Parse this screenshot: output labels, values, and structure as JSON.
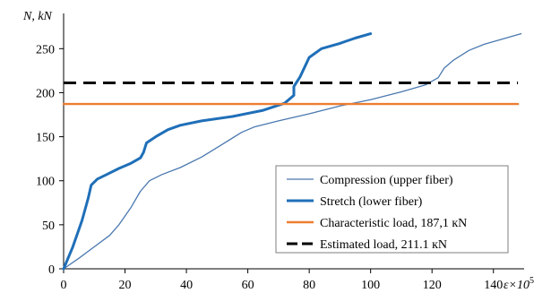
{
  "chart_data": {
    "type": "line",
    "xlabel": "ε×10",
    "xlabel_exponent": "5",
    "ylabel": "N, kN",
    "xlim": [
      0,
      150
    ],
    "ylim": [
      0,
      290
    ],
    "x_ticks": [
      0,
      20,
      40,
      60,
      80,
      100,
      120,
      140
    ],
    "y_ticks": [
      0,
      50,
      100,
      150,
      200,
      250
    ],
    "grid": false,
    "legend_position": "bottom-right",
    "series": [
      {
        "name": "Compression (upper fiber)",
        "color": "#4a78b0",
        "style": "solid",
        "weight": "thin",
        "points": [
          [
            0,
            0
          ],
          [
            5,
            12
          ],
          [
            10,
            25
          ],
          [
            15,
            38
          ],
          [
            18,
            50
          ],
          [
            22,
            70
          ],
          [
            25,
            88
          ],
          [
            28,
            100
          ],
          [
            32,
            107
          ],
          [
            38,
            115
          ],
          [
            45,
            127
          ],
          [
            52,
            142
          ],
          [
            58,
            155
          ],
          [
            62,
            161
          ],
          [
            70,
            168
          ],
          [
            80,
            176
          ],
          [
            90,
            185
          ],
          [
            100,
            192
          ],
          [
            110,
            201
          ],
          [
            118,
            209
          ],
          [
            122,
            217
          ],
          [
            124,
            228
          ],
          [
            127,
            237
          ],
          [
            132,
            248
          ],
          [
            137,
            255
          ],
          [
            142,
            260
          ],
          [
            149,
            267
          ]
        ]
      },
      {
        "name": "Stretch (lower fiber)",
        "color": "#1f6fb8",
        "style": "solid",
        "weight": "thick",
        "points": [
          [
            0,
            0
          ],
          [
            3,
            25
          ],
          [
            6,
            55
          ],
          [
            8,
            80
          ],
          [
            9,
            95
          ],
          [
            11,
            102
          ],
          [
            14,
            107
          ],
          [
            18,
            114
          ],
          [
            22,
            120
          ],
          [
            25,
            126
          ],
          [
            26,
            132
          ],
          [
            27,
            143
          ],
          [
            30,
            150
          ],
          [
            34,
            158
          ],
          [
            38,
            163
          ],
          [
            45,
            168
          ],
          [
            55,
            173
          ],
          [
            65,
            180
          ],
          [
            72,
            188
          ],
          [
            75,
            197
          ],
          [
            75,
            207
          ],
          [
            77,
            218
          ],
          [
            80,
            240
          ],
          [
            84,
            250
          ],
          [
            90,
            256
          ],
          [
            95,
            262
          ],
          [
            100,
            267
          ]
        ]
      },
      {
        "name": "Characteristic load, 187,1 кN",
        "color": "#ed7d31",
        "style": "solid",
        "weight": "medium",
        "points": [
          [
            0,
            187.1
          ],
          [
            148,
            187.1
          ]
        ]
      },
      {
        "name": "Estimated load, 211.1 кN",
        "color": "#000000",
        "style": "dashed",
        "weight": "thick",
        "points": [
          [
            0,
            211.1
          ],
          [
            148,
            211.1
          ]
        ]
      }
    ]
  }
}
